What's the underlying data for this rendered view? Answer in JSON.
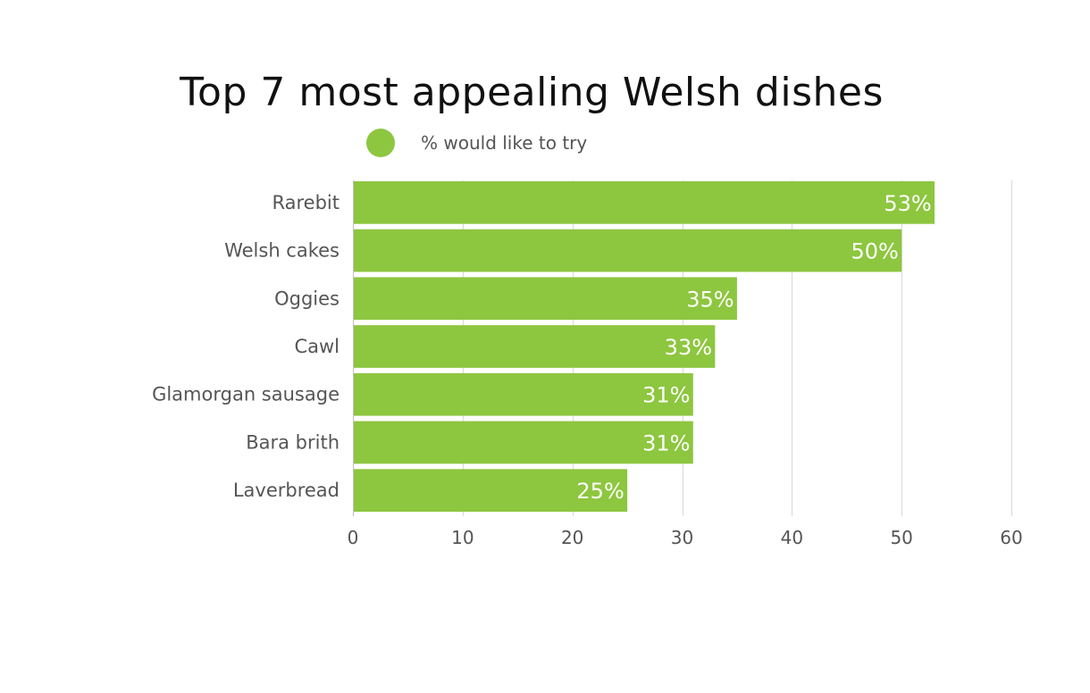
{
  "chart_data": {
    "type": "bar",
    "orientation": "horizontal",
    "title": "Top 7 most appealing Welsh dishes",
    "categories": [
      "Rarebit",
      "Welsh cakes",
      "Oggies",
      "Cawl",
      "Glamorgan sausage",
      "Bara brith",
      "Laverbread"
    ],
    "series": [
      {
        "name": "% would like to try",
        "values": [
          53,
          50,
          35,
          33,
          31,
          31,
          25
        ],
        "data_labels": [
          "53%",
          "50%",
          "35%",
          "33%",
          "31%",
          "31%",
          "25%"
        ]
      }
    ],
    "xlim": [
      0,
      60
    ],
    "xticks": [
      0,
      10,
      20,
      30,
      40,
      50,
      60
    ],
    "xlabel": "",
    "ylabel": "",
    "grid": "vertical",
    "legend_position": "top"
  },
  "colors": {
    "bar": "#8dc63f",
    "grid": "#d9d9d9",
    "axis": "#bfbfbf"
  }
}
